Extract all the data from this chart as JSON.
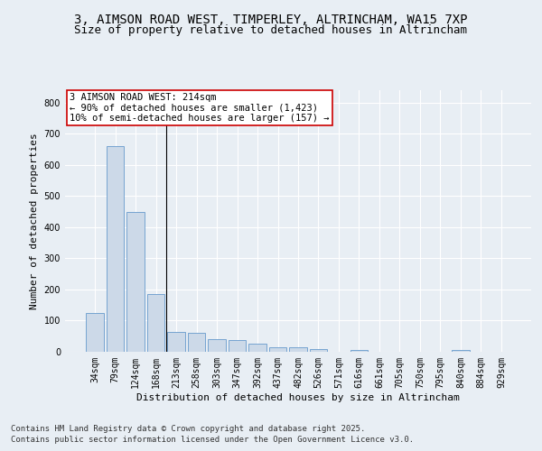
{
  "title_line1": "3, AIMSON ROAD WEST, TIMPERLEY, ALTRINCHAM, WA15 7XP",
  "title_line2": "Size of property relative to detached houses in Altrincham",
  "xlabel": "Distribution of detached houses by size in Altrincham",
  "ylabel": "Number of detached properties",
  "categories": [
    "34sqm",
    "79sqm",
    "124sqm",
    "168sqm",
    "213sqm",
    "258sqm",
    "303sqm",
    "347sqm",
    "392sqm",
    "437sqm",
    "482sqm",
    "526sqm",
    "571sqm",
    "616sqm",
    "661sqm",
    "705sqm",
    "750sqm",
    "795sqm",
    "840sqm",
    "884sqm",
    "929sqm"
  ],
  "values": [
    125,
    660,
    450,
    185,
    63,
    60,
    40,
    38,
    25,
    15,
    15,
    10,
    0,
    5,
    0,
    0,
    0,
    0,
    5,
    0,
    0
  ],
  "bar_color": "#ccd9e8",
  "bar_edge_color": "#6699cc",
  "vline_x_index": 3.5,
  "annotation_text": "3 AIMSON ROAD WEST: 214sqm\n← 90% of detached houses are smaller (1,423)\n10% of semi-detached houses are larger (157) →",
  "annotation_box_color": "#ffffff",
  "annotation_box_edge_color": "#cc0000",
  "ylim": [
    0,
    840
  ],
  "yticks": [
    0,
    100,
    200,
    300,
    400,
    500,
    600,
    700,
    800
  ],
  "background_color": "#e8eef4",
  "grid_color": "#ffffff",
  "footer_line1": "Contains HM Land Registry data © Crown copyright and database right 2025.",
  "footer_line2": "Contains public sector information licensed under the Open Government Licence v3.0.",
  "title_fontsize": 10,
  "subtitle_fontsize": 9,
  "axis_label_fontsize": 8,
  "tick_fontsize": 7,
  "annotation_fontsize": 7.5,
  "footer_fontsize": 6.5
}
